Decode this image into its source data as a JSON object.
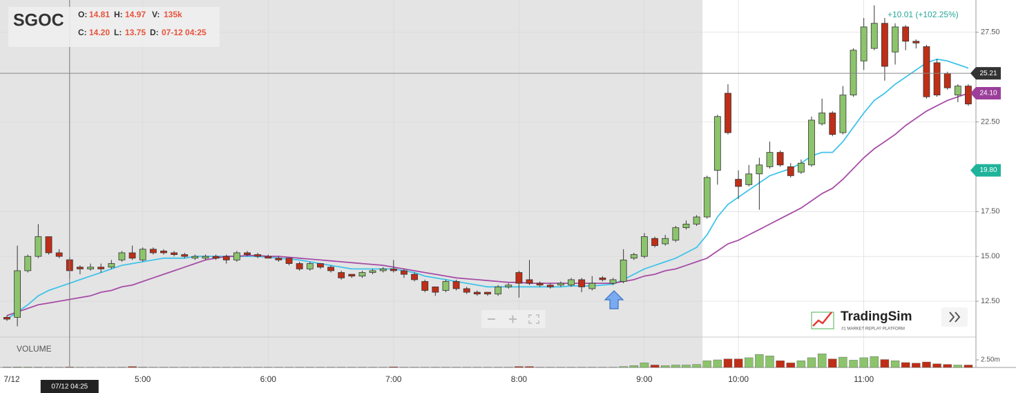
{
  "header": {
    "symbol": "SGOC",
    "fields": [
      {
        "label": "O:",
        "value": "14.81"
      },
      {
        "label": "H:",
        "value": "14.97"
      },
      {
        "label": "V:",
        "value": "135k"
      },
      {
        "label": "C:",
        "value": "14.20"
      },
      {
        "label": "L:",
        "value": "13.75"
      },
      {
        "label": "D:",
        "value": "07-12 04:25"
      }
    ]
  },
  "logo": {
    "name": "TradingSim",
    "tagline": "#1 MARKET REPLAY PLATFORM"
  },
  "chart_data": {
    "type": "candlestick",
    "change_label": "+10.01 (+102.25%)",
    "crosshair_time": "07/12 04:25",
    "crosshair_index": 6,
    "volume_label": "VOLUME",
    "categories": [
      "7/12",
      null,
      null,
      null,
      null,
      null,
      null,
      null,
      null,
      null,
      null,
      null,
      null,
      "5:00",
      null,
      null,
      null,
      null,
      null,
      null,
      null,
      null,
      null,
      null,
      null,
      "6:00",
      null,
      null,
      null,
      null,
      null,
      null,
      null,
      null,
      null,
      null,
      null,
      "7:00",
      null,
      null,
      null,
      null,
      null,
      null,
      null,
      null,
      null,
      null,
      null,
      "8:00",
      null,
      null,
      null,
      null,
      null,
      null,
      null,
      null,
      null,
      null,
      null,
      "9:00",
      null,
      null,
      null,
      null,
      null,
      null,
      null,
      null,
      "10:00",
      null,
      null,
      null,
      null,
      null,
      null,
      null,
      null,
      null,
      null,
      null,
      "11:00",
      null,
      null,
      null,
      null,
      null,
      null,
      null,
      null,
      null,
      null
    ],
    "open": [
      11.6,
      11.6,
      14.2,
      15.0,
      16.1,
      15.2,
      14.81,
      14.4,
      14.3,
      14.4,
      14.4,
      14.8,
      15.2,
      14.8,
      15.4,
      15.3,
      15.2,
      15.1,
      14.9,
      14.9,
      15.0,
      15.0,
      14.8,
      15.2,
      15.1,
      15.0,
      14.9,
      14.9,
      14.6,
      14.3,
      14.6,
      14.4,
      14.1,
      14.0,
      13.9,
      14.1,
      14.2,
      14.3,
      14.2,
      14.0,
      13.6,
      13.3,
      13.1,
      13.6,
      13.2,
      13.0,
      13.0,
      12.9,
      13.3,
      14.1,
      13.7,
      13.5,
      13.4,
      13.4,
      13.4,
      13.7,
      13.2,
      13.8,
      13.5,
      13.6,
      14.9,
      15.0,
      16.0,
      15.7,
      15.9,
      16.6,
      16.8,
      17.2,
      19.8,
      24.1,
      19.3,
      19.0,
      19.6,
      20.0,
      20.8,
      20.0,
      19.7,
      20.1,
      22.4,
      23.0,
      21.9,
      24.0,
      25.9,
      26.6,
      28.0,
      26.4,
      27.8,
      27.0,
      26.7,
      25.8,
      25.2,
      24.0,
      24.5
    ],
    "high": [
      11.7,
      15.6,
      15.1,
      16.8,
      16.1,
      15.4,
      14.97,
      14.5,
      14.6,
      14.6,
      14.8,
      15.3,
      15.6,
      15.5,
      15.5,
      15.4,
      15.3,
      15.2,
      15.1,
      15.1,
      15.1,
      15.1,
      15.3,
      15.3,
      15.2,
      15.1,
      15.0,
      14.9,
      14.7,
      14.7,
      14.6,
      14.5,
      14.2,
      14.0,
      14.2,
      14.3,
      14.4,
      14.8,
      14.3,
      14.1,
      13.7,
      13.3,
      13.7,
      13.7,
      13.3,
      13.1,
      13.0,
      13.4,
      13.5,
      14.2,
      14.8,
      13.6,
      13.5,
      13.6,
      13.8,
      13.8,
      13.9,
      13.9,
      13.8,
      15.4,
      15.2,
      16.3,
      16.1,
      16.2,
      16.7,
      17.0,
      17.3,
      19.5,
      22.9,
      24.6,
      19.8,
      20.1,
      20.5,
      21.4,
      20.9,
      20.2,
      20.4,
      22.8,
      23.8,
      23.1,
      24.5,
      26.6,
      28.3,
      29.0,
      28.3,
      28.0,
      27.9,
      27.1,
      26.8,
      26.0,
      25.3,
      24.6,
      24.6
    ],
    "low": [
      11.4,
      11.1,
      14.1,
      14.9,
      15.1,
      14.9,
      13.75,
      14.0,
      14.2,
      14.1,
      14.3,
      14.7,
      14.8,
      14.7,
      15.1,
      15.1,
      15.0,
      14.9,
      14.8,
      14.8,
      14.8,
      14.6,
      14.7,
      15.0,
      14.9,
      14.9,
      14.7,
      14.5,
      14.2,
      14.2,
      14.3,
      14.1,
      13.7,
      13.8,
      13.8,
      14.0,
      14.1,
      14.1,
      13.8,
      13.6,
      13.0,
      12.8,
      13.0,
      13.1,
      12.9,
      12.8,
      12.8,
      12.8,
      13.2,
      12.7,
      13.4,
      13.3,
      13.2,
      13.3,
      13.3,
      13.0,
      13.1,
      13.6,
      13.4,
      13.5,
      14.8,
      14.9,
      15.5,
      15.6,
      15.8,
      16.5,
      16.7,
      17.1,
      19.0,
      21.8,
      18.2,
      18.9,
      17.6,
      19.9,
      20.0,
      19.4,
      19.6,
      20.0,
      22.3,
      21.7,
      21.8,
      23.9,
      25.4,
      26.5,
      24.8,
      25.7,
      26.5,
      26.6,
      23.8,
      23.9,
      24.3,
      23.6,
      23.4
    ],
    "close": [
      11.5,
      14.2,
      15.0,
      16.1,
      15.2,
      15.0,
      14.2,
      14.3,
      14.4,
      14.3,
      14.6,
      15.2,
      14.9,
      15.4,
      15.2,
      15.2,
      15.1,
      15.0,
      15.0,
      15.0,
      14.9,
      14.8,
      15.2,
      15.1,
      15.0,
      14.9,
      14.8,
      14.6,
      14.3,
      14.6,
      14.4,
      14.2,
      13.8,
      13.9,
      14.1,
      14.2,
      14.3,
      14.2,
      14.0,
      13.7,
      13.1,
      13.0,
      13.6,
      13.2,
      13.0,
      12.9,
      12.9,
      13.3,
      13.4,
      13.5,
      13.5,
      13.4,
      13.3,
      13.5,
      13.7,
      13.3,
      13.5,
      13.7,
      13.7,
      14.8,
      15.1,
      16.1,
      15.6,
      16.0,
      16.6,
      16.8,
      17.2,
      19.4,
      22.8,
      21.9,
      18.9,
      19.6,
      20.1,
      20.8,
      20.1,
      19.5,
      20.2,
      22.6,
      23.0,
      21.8,
      24.0,
      26.5,
      27.8,
      28.0,
      25.6,
      27.8,
      27.0,
      26.9,
      23.9,
      24.0,
      24.4,
      24.5,
      23.5
    ],
    "volume": [
      100000,
      150000,
      120000,
      100000,
      80000,
      60000,
      135000,
      50000,
      50000,
      50000,
      50000,
      80000,
      300000,
      100000,
      60000,
      50000,
      50000,
      50000,
      50000,
      50000,
      50000,
      50000,
      50000,
      50000,
      50000,
      50000,
      50000,
      50000,
      50000,
      50000,
      50000,
      50000,
      50000,
      50000,
      50000,
      50000,
      50000,
      200000,
      50000,
      50000,
      50000,
      50000,
      50000,
      50000,
      50000,
      50000,
      50000,
      50000,
      50000,
      300000,
      300000,
      50000,
      50000,
      50000,
      50000,
      50000,
      50000,
      50000,
      50000,
      300000,
      600000,
      1500000,
      800000,
      600000,
      800000,
      800000,
      1000000,
      2200000,
      2500000,
      2800000,
      2800000,
      3200000,
      4300000,
      3800000,
      2200000,
      1500000,
      2200000,
      3200000,
      4500000,
      2800000,
      3400000,
      2400000,
      3200000,
      3600000,
      2600000,
      2200000,
      1600000,
      1400000,
      1800000,
      1200000,
      1000000,
      800000,
      800000
    ],
    "up_color": "#8cc46c",
    "down_color": "#bf2e17",
    "lines": [
      {
        "color": "#3fc3ea",
        "values": [
          11.5,
          11.9,
          12.3,
          12.8,
          13.1,
          13.3,
          13.5,
          13.7,
          13.9,
          14.1,
          14.3,
          14.5,
          14.6,
          14.7,
          14.8,
          14.9,
          14.9,
          14.9,
          15.0,
          15.0,
          15.0,
          15.0,
          15.0,
          15.0,
          15.0,
          14.95,
          14.9,
          14.85,
          14.8,
          14.7,
          14.6,
          14.5,
          14.4,
          14.3,
          14.3,
          14.3,
          14.3,
          14.3,
          14.2,
          14.1,
          13.9,
          13.8,
          13.7,
          13.6,
          13.5,
          13.4,
          13.3,
          13.3,
          13.3,
          13.3,
          13.3,
          13.3,
          13.3,
          13.3,
          13.35,
          13.35,
          13.35,
          13.4,
          13.45,
          13.7,
          14.0,
          14.3,
          14.5,
          14.7,
          14.9,
          15.2,
          15.5,
          16.2,
          17.2,
          17.9,
          18.3,
          18.7,
          19.1,
          19.5,
          19.7,
          19.9,
          20.2,
          20.6,
          20.8,
          20.8,
          21.4,
          22.2,
          23.0,
          23.7,
          24.1,
          24.6,
          25.0,
          25.4,
          25.8,
          26.0,
          25.9,
          25.7,
          25.5
        ]
      },
      {
        "color": "#a64ca6",
        "values": [
          11.7,
          11.9,
          12.1,
          12.3,
          12.4,
          12.5,
          12.6,
          12.7,
          12.8,
          13.0,
          13.1,
          13.3,
          13.4,
          13.6,
          13.8,
          14.0,
          14.2,
          14.4,
          14.6,
          14.8,
          14.9,
          15.0,
          15.0,
          15.05,
          15.05,
          15.0,
          15.0,
          14.95,
          14.9,
          14.85,
          14.8,
          14.75,
          14.7,
          14.65,
          14.6,
          14.55,
          14.5,
          14.4,
          14.3,
          14.2,
          14.1,
          14.0,
          13.9,
          13.8,
          13.75,
          13.7,
          13.65,
          13.6,
          13.55,
          13.55,
          13.5,
          13.5,
          13.5,
          13.5,
          13.5,
          13.5,
          13.5,
          13.5,
          13.5,
          13.6,
          13.7,
          13.9,
          14.0,
          14.2,
          14.3,
          14.5,
          14.7,
          14.9,
          15.3,
          15.7,
          15.9,
          16.2,
          16.5,
          16.8,
          17.1,
          17.4,
          17.7,
          18.1,
          18.5,
          18.8,
          19.3,
          19.9,
          20.5,
          21.0,
          21.4,
          21.8,
          22.3,
          22.7,
          23.1,
          23.4,
          23.7,
          23.9,
          24.1
        ]
      }
    ],
    "ylim": [
      10.5,
      29.3
    ],
    "yticks": [
      {
        "value": 12.5,
        "label": "12.50"
      },
      {
        "value": 15,
        "label": "15.00"
      },
      {
        "value": 17.5,
        "label": "17.50"
      },
      {
        "value": 22.5,
        "label": "22.50"
      },
      {
        "value": 27.5,
        "label": "27.50"
      }
    ],
    "volume_lim": [
      0,
      10000000
    ],
    "volume_ticks": [
      {
        "value": 2500000,
        "label": "2.50m"
      }
    ],
    "price_tags": [
      {
        "value": 25.21,
        "label": "25.21",
        "color": "#333333"
      },
      {
        "value": 24.1,
        "label": "24.10",
        "color": "#9b3f9b"
      },
      {
        "value": 19.8,
        "label": "19.80",
        "color": "#1fb39b"
      }
    ],
    "grid": true
  }
}
